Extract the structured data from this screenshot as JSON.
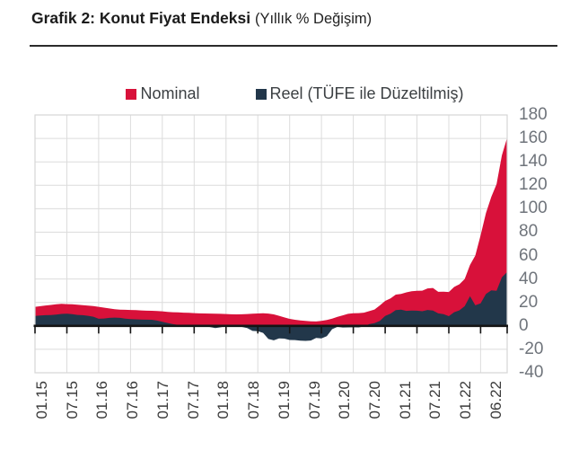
{
  "header": {
    "title_bold": "Grafik 2: Konut Fiyat Endeksi",
    "title_note": "(Yıllık % Değişim)"
  },
  "legend": [
    {
      "label": "Nominal",
      "color": "#d8113a"
    },
    {
      "label": "Reel (TÜFE ile Düzeltilmiş)",
      "color": "#22374a"
    }
  ],
  "colors": {
    "nominal": "#d8113a",
    "real": "#22374a",
    "gridline": "#dcdcdc",
    "plot_border": "#d6d6d6",
    "zero_axis": "#141414",
    "y_label": "#6f747b",
    "x_label": "#3a3a3a",
    "rule": "#2b2b2b"
  },
  "chart_data": {
    "type": "area",
    "title": "Grafik 2: Konut Fiyat Endeksi (Yıllık % Değişim)",
    "xlabel": "",
    "ylabel": "Yıllık % Değişim",
    "frequency": "monthly",
    "x_start": "01.15",
    "x_end": "06.22",
    "ylim": [
      -40,
      180
    ],
    "y_ticks": [
      180,
      160,
      140,
      120,
      100,
      80,
      60,
      40,
      20,
      0,
      -20,
      -40
    ],
    "x_tick_labels": [
      "01.15",
      "07.15",
      "01.16",
      "07.16",
      "01.17",
      "07.17",
      "01.18",
      "07.18",
      "01.19",
      "07.19",
      "01.20",
      "07.20",
      "01.21",
      "07.21",
      "01.22",
      "06.22"
    ],
    "x_tick_months": [
      0,
      6,
      12,
      18,
      24,
      30,
      36,
      42,
      48,
      54,
      60,
      66,
      72,
      78,
      84,
      89
    ],
    "grid": true,
    "legend_position": "top",
    "series": [
      {
        "name": "Nominal",
        "color": "#d8113a",
        "values": [
          16.3,
          16.8,
          17.4,
          17.9,
          18.5,
          18.8,
          18.6,
          18.4,
          18.1,
          17.7,
          17.3,
          16.9,
          16.3,
          15.6,
          14.9,
          14.3,
          13.9,
          13.7,
          13.6,
          13.4,
          13.2,
          13.0,
          12.9,
          12.7,
          12.4,
          12.0,
          11.7,
          11.5,
          11.3,
          11.1,
          10.9,
          10.7,
          10.6,
          10.5,
          10.4,
          10.3,
          10.1,
          9.9,
          9.8,
          9.9,
          10.1,
          10.4,
          10.6,
          10.8,
          10.5,
          9.8,
          8.6,
          7.2,
          6.0,
          5.2,
          4.6,
          4.2,
          3.9,
          3.8,
          4.2,
          5.0,
          6.2,
          7.7,
          9.0,
          10.3,
          10.8,
          10.9,
          11.3,
          12.6,
          14.0,
          17.5,
          21.3,
          23.4,
          26.7,
          27.3,
          28.6,
          29.6,
          30.0,
          30.1,
          32.0,
          32.4,
          29.1,
          29.2,
          28.9,
          33.2,
          35.5,
          40.0,
          52.0,
          60.0,
          77.3,
          96.4,
          110.0,
          121.0,
          145.5,
          160.6
        ]
      },
      {
        "name": "Reel (TÜFE ile Düzeltilmiş)",
        "color": "#22374a",
        "values": [
          8.5,
          8.8,
          9.1,
          9.3,
          9.6,
          10.2,
          10.4,
          10.0,
          9.4,
          9.1,
          8.6,
          7.8,
          6.1,
          6.3,
          6.8,
          7.1,
          6.8,
          6.2,
          5.8,
          5.6,
          5.4,
          5.3,
          5.2,
          4.5,
          3.5,
          2.5,
          1.5,
          0.8,
          0.4,
          0.2,
          0.5,
          0.2,
          -0.3,
          -1.0,
          -1.8,
          -1.2,
          -0.2,
          -0.4,
          -0.4,
          -0.9,
          -1.9,
          -4.3,
          -4.6,
          -6.0,
          -11.2,
          -12.3,
          -10.7,
          -10.9,
          -12.0,
          -12.1,
          -12.6,
          -12.8,
          -12.5,
          -10.3,
          -10.7,
          -8.7,
          -2.8,
          -0.8,
          -1.4,
          -1.3,
          -1.2,
          -1.3,
          -0.5,
          1.5,
          2.3,
          4.3,
          8.5,
          10.4,
          13.4,
          13.8,
          12.8,
          13.1,
          13.0,
          12.5,
          13.6,
          13.1,
          10.7,
          10.0,
          8.3,
          11.7,
          13.3,
          16.8,
          25.3,
          17.6,
          19.2,
          27.2,
          30.4,
          30.0,
          41.5,
          45.9
        ]
      }
    ]
  }
}
